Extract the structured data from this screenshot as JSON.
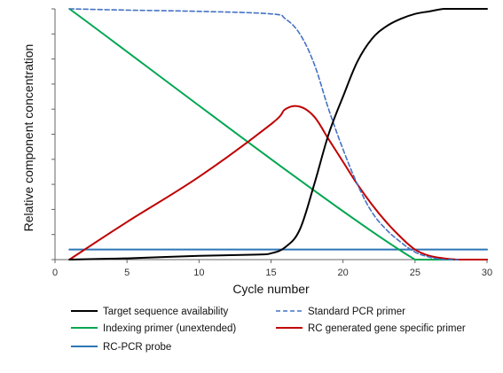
{
  "chart_data": {
    "type": "line",
    "xlabel": "Cycle number",
    "ylabel": "Relative component concentration",
    "xlim": [
      0,
      30
    ],
    "ylim": [
      0,
      1
    ],
    "x_ticks": [
      0,
      5,
      10,
      15,
      20,
      25,
      30
    ],
    "y_tick_count": 10,
    "grid": false,
    "legend_position": "bottom",
    "series": [
      {
        "name": "Target sequence availability",
        "color": "#000000",
        "dash": "solid",
        "x": [
          1,
          5,
          10,
          14,
          15,
          16,
          17,
          18,
          19,
          20,
          21,
          22,
          23,
          24,
          25,
          26,
          27,
          28,
          29,
          30
        ],
        "y": [
          0.0,
          0.005,
          0.015,
          0.02,
          0.025,
          0.05,
          0.12,
          0.3,
          0.5,
          0.65,
          0.79,
          0.88,
          0.93,
          0.96,
          0.98,
          0.99,
          1.0,
          1.0,
          1.0,
          1.0
        ]
      },
      {
        "name": "Standard PCR primer",
        "color": "#4472c4",
        "dash": "dashed",
        "x": [
          1,
          5,
          10,
          15,
          16,
          17,
          18,
          19,
          20,
          21,
          22,
          23,
          24,
          25,
          26,
          27,
          28
        ],
        "y": [
          1.0,
          0.995,
          0.99,
          0.98,
          0.96,
          0.9,
          0.78,
          0.6,
          0.44,
          0.3,
          0.19,
          0.12,
          0.07,
          0.03,
          0.01,
          0.0,
          0.0
        ]
      },
      {
        "name": "Indexing primer (unextended)",
        "color": "#00a651",
        "dash": "solid",
        "x": [
          1,
          25,
          30
        ],
        "y": [
          1.0,
          0.0,
          0.0
        ]
      },
      {
        "name": "RC generated gene specific primer",
        "color": "#c00000",
        "dash": "solid",
        "x": [
          1,
          5,
          10,
          15,
          16,
          17,
          18,
          19,
          20,
          21,
          22,
          23,
          24,
          25,
          26,
          27,
          28,
          29,
          30
        ],
        "y": [
          0.0,
          0.15,
          0.33,
          0.54,
          0.6,
          0.61,
          0.57,
          0.48,
          0.39,
          0.3,
          0.22,
          0.15,
          0.09,
          0.04,
          0.015,
          0.005,
          0.0,
          0.0,
          0.0
        ]
      },
      {
        "name": "RC-PCR probe",
        "color": "#2e75b6",
        "dash": "solid",
        "x": [
          1,
          30
        ],
        "y": [
          0.04,
          0.04
        ]
      }
    ]
  }
}
